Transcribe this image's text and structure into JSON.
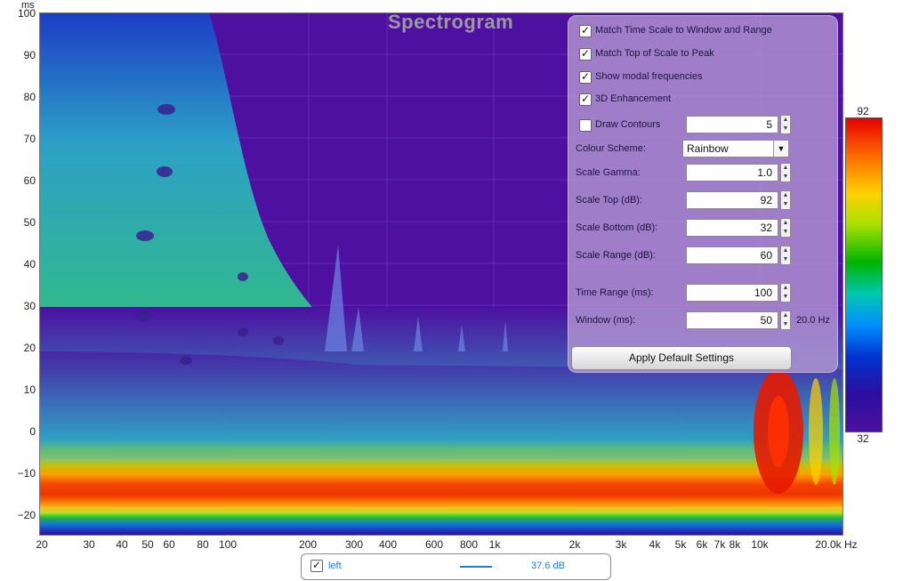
{
  "title": "Spectrogram",
  "y_axis": {
    "unit": "ms",
    "ticks": [
      "100",
      "90",
      "80",
      "70",
      "60",
      "50",
      "40",
      "30",
      "20",
      "10",
      "0",
      "−10",
      "−20"
    ]
  },
  "x_axis": {
    "ticks": [
      "20",
      "30",
      "40",
      "50",
      "60",
      "80",
      "100",
      "200",
      "300",
      "400",
      "600",
      "800",
      "1k",
      "2k",
      "3k",
      "4k",
      "5k",
      "6k",
      "7k",
      "8k",
      "10k",
      "20.0k Hz"
    ]
  },
  "panel": {
    "match_time_scale": {
      "label": "Match Time Scale to Window and Range",
      "checked": true
    },
    "match_top_scale": {
      "label": "Match Top of Scale to Peak",
      "checked": true
    },
    "show_modal": {
      "label": "Show modal frequencies",
      "checked": true
    },
    "enhancement_3d": {
      "label": "3D Enhancement",
      "checked": true
    },
    "draw_contours": {
      "label": "Draw Contours",
      "checked": false,
      "value": "5"
    },
    "colour_scheme": {
      "label": "Colour Scheme:",
      "value": "Rainbow"
    },
    "scale_gamma": {
      "label": "Scale Gamma:",
      "value": "1.0"
    },
    "scale_top": {
      "label": "Scale Top (dB):",
      "value": "92"
    },
    "scale_bottom": {
      "label": "Scale Bottom (dB):",
      "value": "32"
    },
    "scale_range": {
      "label": "Scale Range (dB):",
      "value": "60"
    },
    "time_range": {
      "label": "Time Range (ms):",
      "value": "100"
    },
    "window": {
      "label": "Window (ms):",
      "value": "50",
      "resolution": "20.0 Hz"
    },
    "apply_label": "Apply Default Settings"
  },
  "color_scale": {
    "top": "92",
    "bottom": "32"
  },
  "legend": {
    "name": "left",
    "value": "37.6 dB",
    "checked": true,
    "color": "#1e7fd0"
  },
  "colors": {
    "background": "#4d10a0",
    "accent": "#1e7fd0"
  }
}
